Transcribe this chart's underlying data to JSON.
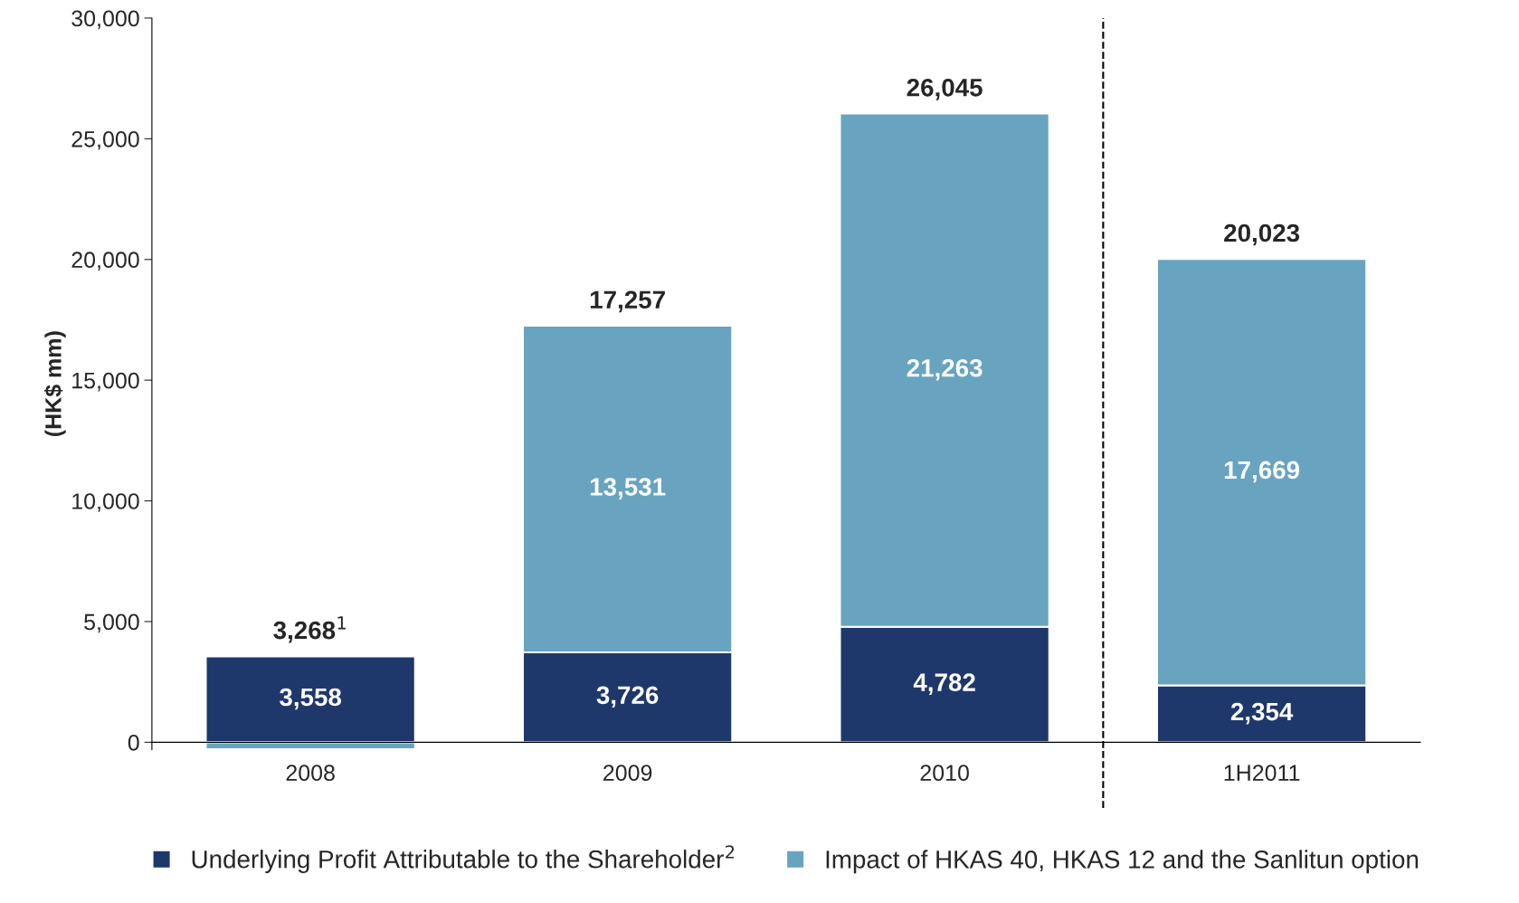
{
  "chart_data": {
    "type": "bar",
    "stacked": true,
    "ylabel": "(HK$ mm)",
    "categories": [
      "2008",
      "2009",
      "2010",
      "1H2011"
    ],
    "series": [
      {
        "name": "Underlying Profit Attributable to the Shareholder$^{2}$",
        "color": "#1f386b",
        "values": [
          3558,
          3726,
          4782,
          2354
        ],
        "value_labels": [
          "3,558",
          "3,726",
          "4,782",
          "2,354"
        ]
      },
      {
        "name": "Impact of HKAS 40, HKAS 12 and the Sanlitun option",
        "color": "#68a4c0",
        "values": [
          -290,
          13531,
          21263,
          17669
        ],
        "value_labels": [
          null,
          "13,531",
          "21,263",
          "17,669"
        ]
      }
    ],
    "totals": [
      "3,268$^{1}$",
      "17,257",
      "26,045",
      "20,023"
    ],
    "ylim": [
      -300,
      30000
    ],
    "yticks": [
      {
        "value": 0,
        "label": "0"
      },
      {
        "value": 5000,
        "label": "5,000"
      },
      {
        "value": 10000,
        "label": "10,000"
      },
      {
        "value": 15000,
        "label": "15,000"
      },
      {
        "value": 20000,
        "label": "20,000"
      },
      {
        "value": 25000,
        "label": "25,000"
      },
      {
        "value": 30000,
        "label": "30,000"
      }
    ],
    "grid": false,
    "legend": "bottom"
  }
}
